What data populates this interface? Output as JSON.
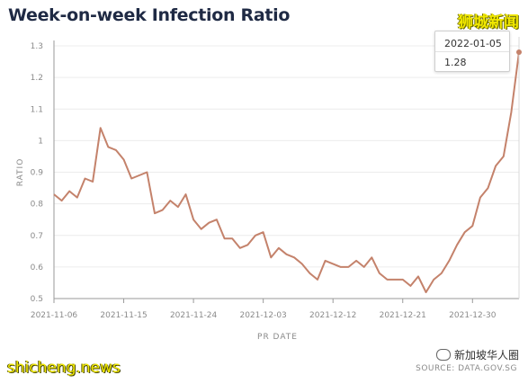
{
  "title": "Week-on-week Infection Ratio",
  "watermarks": {
    "top_right": "狮城新闻",
    "bottom_left": "shicheng.news",
    "wechat": "新加坡华人圈"
  },
  "source": "SOURCE: DATA.GOV.SG",
  "tooltip": {
    "date": "2022-01-05",
    "value": "1.28"
  },
  "colors": {
    "line": "#c4826b",
    "grid": "#ececec",
    "axis": "#9a9a9a"
  },
  "chart_data": {
    "type": "line",
    "title": "Week-on-week Infection Ratio",
    "xlabel": "PR DATE",
    "ylabel": "RATIO",
    "ylim": [
      0.5,
      1.3
    ],
    "yticks": [
      0.5,
      0.6,
      0.7,
      0.8,
      0.9,
      1,
      1.1,
      1.2,
      1.3
    ],
    "xticks": [
      "2021-11-06",
      "2021-11-15",
      "2021-11-24",
      "2021-12-03",
      "2021-12-12",
      "2021-12-21",
      "2021-12-30"
    ],
    "grid": true,
    "x_start": "2021-11-06",
    "x_end": "2022-01-05",
    "series": [
      {
        "values": [
          0.83,
          0.81,
          0.84,
          0.82,
          0.88,
          0.87,
          1.04,
          0.98,
          0.97,
          0.94,
          0.88,
          0.89,
          0.9,
          0.77,
          0.78,
          0.81,
          0.79,
          0.83,
          0.75,
          0.72,
          0.74,
          0.75,
          0.69,
          0.69,
          0.66,
          0.67,
          0.7,
          0.71,
          0.63,
          0.66,
          0.64,
          0.63,
          0.61,
          0.58,
          0.56,
          0.62,
          0.61,
          0.6,
          0.6,
          0.62,
          0.6,
          0.63,
          0.58,
          0.56,
          0.56,
          0.56,
          0.54,
          0.57,
          0.52,
          0.56,
          0.58,
          0.62,
          0.67,
          0.71,
          0.73,
          0.82,
          0.85,
          0.92,
          0.95,
          1.09,
          1.28
        ]
      }
    ]
  }
}
